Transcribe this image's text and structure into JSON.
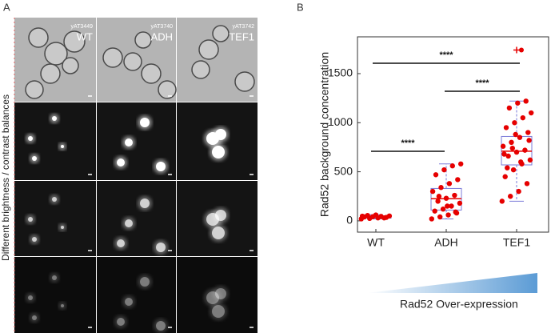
{
  "panel_a": {
    "label": "A",
    "side_label": "Different brightness / contrast balances",
    "columns": [
      {
        "strain": "yAT3449",
        "name": "WT"
      },
      {
        "strain": "yAT3740",
        "name": "ADH"
      },
      {
        "strain": "yAT3742",
        "name": "TEF1"
      }
    ]
  },
  "chart_data": {
    "type": "box",
    "panel_label": "B",
    "y_label": "Rad52 background concentration",
    "categories": [
      "WT",
      "ADH",
      "TEF1"
    ],
    "boxes": [
      {
        "whislo": 20,
        "q1": 28,
        "med": 40,
        "q3": 52,
        "whishi": 62
      },
      {
        "whislo": 20,
        "q1": 110,
        "med": 225,
        "q3": 330,
        "whishi": 580
      },
      {
        "whislo": 200,
        "q1": 570,
        "med": 710,
        "q3": 860,
        "whishi": 1220
      }
    ],
    "outliers": [
      [],
      [],
      [
        1740
      ]
    ],
    "points": [
      [
        20,
        25,
        30,
        35,
        40,
        42,
        45,
        50,
        55,
        60,
        30,
        48
      ],
      [
        20,
        40,
        60,
        80,
        100,
        120,
        150,
        180,
        200,
        230,
        260,
        300,
        340,
        380,
        420,
        470,
        520,
        560,
        580,
        250,
        150,
        90
      ],
      [
        200,
        250,
        300,
        380,
        450,
        520,
        580,
        620,
        660,
        700,
        720,
        760,
        800,
        850,
        900,
        950,
        1000,
        1050,
        1100,
        1150,
        1200,
        1220,
        680,
        740,
        600,
        820,
        540,
        880
      ]
    ],
    "box_color": "#7b7bd9",
    "median_color": "#e60000",
    "point_color": "#e60000",
    "ylim": [
      -115,
      1875
    ],
    "yticks": [
      0,
      500,
      1000,
      1500
    ],
    "significance": [
      {
        "label": "****"
      },
      {
        "label": "****"
      },
      {
        "label": "****"
      }
    ],
    "footer": "Rad52 Over-expression"
  }
}
